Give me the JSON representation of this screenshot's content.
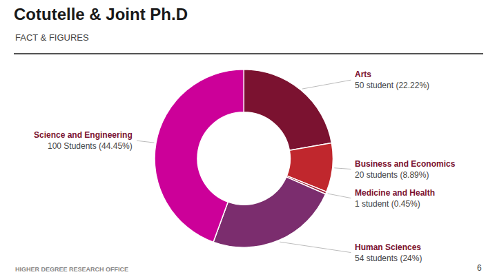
{
  "chart_data": {
    "type": "donut",
    "title": "Cotutelle & Joint Ph.D",
    "subtitle": "FACT & FIGURES",
    "categories": [
      "Arts",
      "Business and Economics",
      "Medicine and Health",
      "Human Sciences",
      "Science and Engineering"
    ],
    "values": [
      50,
      20,
      1,
      54,
      100
    ],
    "value_labels": [
      "50 student (22.22%)",
      "20 students (8.89%)",
      "1 student (0.45%)",
      "54 students (24%)",
      "100 Students (44.45%)"
    ],
    "colors": [
      "#7b1230",
      "#c0272d",
      "#a0203a",
      "#7b2d6e",
      "#cc0099"
    ],
    "annotations": [
      "HIGHER DEGREE RESEARCH OFFICE",
      "6"
    ]
  }
}
